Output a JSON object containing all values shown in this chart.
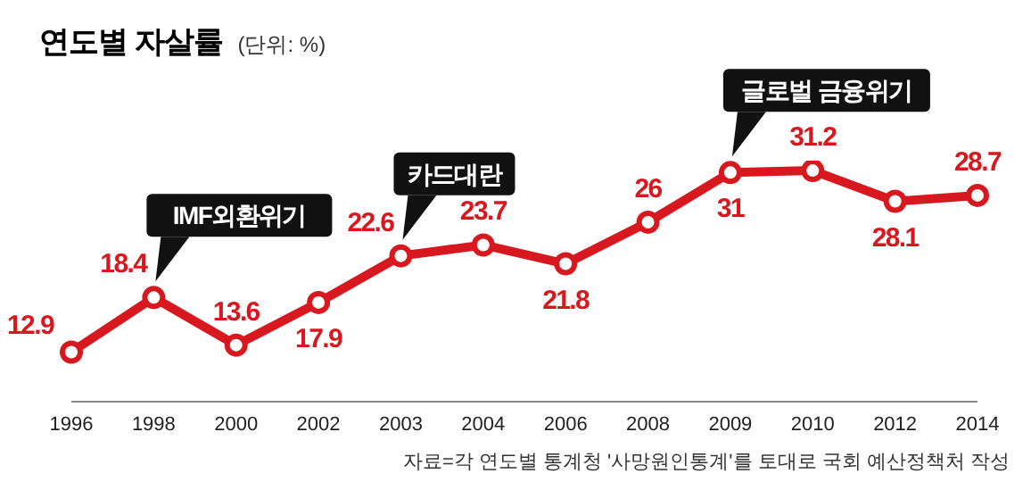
{
  "chart_data": {
    "type": "line",
    "title": "연도별 자살률",
    "subtitle": "(단위: %)",
    "categories": [
      "1996",
      "1998",
      "2000",
      "2002",
      "2003",
      "2004",
      "2006",
      "2008",
      "2009",
      "2010",
      "2012",
      "2014"
    ],
    "series": [
      {
        "color": "#d7191f",
        "values": [
          12.9,
          18.4,
          13.6,
          17.9,
          22.6,
          23.7,
          21.8,
          26,
          31,
          31.2,
          28.1,
          28.7
        ]
      }
    ],
    "tick_labels": "x",
    "data_labels": true,
    "marker": "circle",
    "line_style": "solid",
    "annotations": [
      {
        "text": "IMF외환위기",
        "x": "1998",
        "y": 18.4
      },
      {
        "text": "카드대란",
        "x": "2003",
        "y": 22.6
      },
      {
        "text": "글로벌 금융위기",
        "x": "2009",
        "y": 31
      },
      "자료=각 연도별 통계청 '사망원인통계'를 토대로 국회 예산정책처 작성"
    ]
  }
}
